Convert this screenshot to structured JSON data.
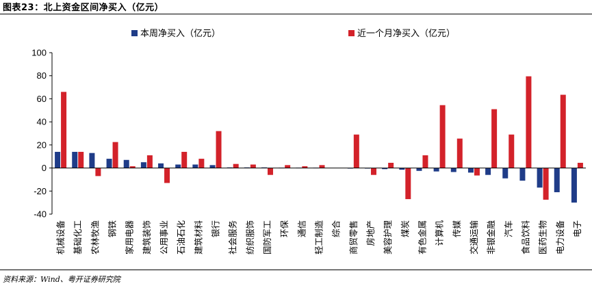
{
  "header": {
    "title": "图表23：北上资金区间净买入（亿元）"
  },
  "footer": {
    "source": "资料来源：Wind、粤开证券研究院"
  },
  "chart_data": {
    "type": "bar",
    "title": "",
    "xlabel": "",
    "ylabel": "",
    "ylim": [
      -40,
      100
    ],
    "yticks": [
      -40,
      -20,
      0,
      20,
      40,
      60,
      80,
      100
    ],
    "grid": false,
    "legend_position": "top",
    "categories": [
      "机械设备",
      "基础化工",
      "农林牧渔",
      "钢铁",
      "家用电器",
      "建筑装饰",
      "公用事业",
      "石油石化",
      "建筑材料",
      "银行",
      "社会服务",
      "纺织服饰",
      "国防军工",
      "环保",
      "通信",
      "轻工制造",
      "综合",
      "商贸零售",
      "房地产",
      "美容护理",
      "煤炭",
      "有色金属",
      "计算机",
      "传媒",
      "交通运输",
      "非银金融",
      "汽车",
      "食品饮料",
      "医药生物",
      "电力设备",
      "电子"
    ],
    "series": [
      {
        "name": "本周净买入（亿元）",
        "color": "#1F3C88",
        "values": [
          14,
          14,
          13,
          8,
          7,
          5,
          4,
          3,
          3,
          2.5,
          0.5,
          0.5,
          0.5,
          0.3,
          0.3,
          0.3,
          0,
          -0.5,
          -0.5,
          -1,
          -1.5,
          -2.5,
          -3,
          -3.5,
          -4,
          -6,
          -9,
          -11,
          -17,
          -21,
          -30
        ]
      },
      {
        "name": "近一个月净买入（亿元）",
        "color": "#D3222A",
        "values": [
          66,
          14,
          -7,
          22.5,
          1.5,
          11,
          -13,
          14,
          8,
          32,
          3.5,
          3,
          -6,
          2.5,
          1.5,
          2.5,
          0,
          29,
          -6,
          4.5,
          -27,
          11,
          54.5,
          25.5,
          -6.5,
          51,
          29,
          79.5,
          -27.5,
          63.5,
          4.5
        ]
      }
    ]
  }
}
